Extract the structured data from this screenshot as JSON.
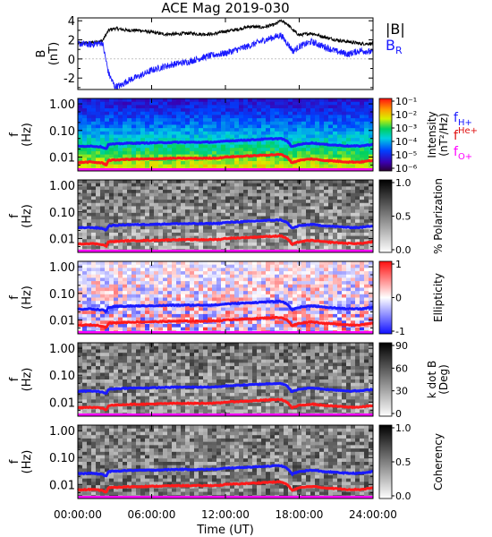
{
  "figure_title": "ACE Mag 2019-030",
  "x_axis": {
    "label": "Time (UT)",
    "ticks": [
      "00:00:00",
      "06:00:00",
      "12:00:00",
      "18:00:00",
      "24:00:00"
    ],
    "range_hours": [
      0,
      24
    ]
  },
  "colors": {
    "B_total": "#000000",
    "B_R": "#1a1aff",
    "f_H": "#1a1aff",
    "f_He": "#ff1a1a",
    "f_O": "#ff00ff"
  },
  "chart_data": [
    {
      "type": "line",
      "panel": "field",
      "ylabel": "B\n(nT)",
      "ylim": [
        -3.2,
        4.3
      ],
      "yticks": [
        "4",
        "2",
        "0",
        "-2"
      ],
      "legend": {
        "placement": "right",
        "entries": [
          "|B|",
          "B_R"
        ]
      },
      "x_hours": [
        0,
        1,
        2,
        2.5,
        3,
        3.5,
        4,
        5,
        6,
        7,
        8,
        9,
        10,
        11,
        12,
        13,
        14,
        15,
        16,
        16.5,
        17,
        17.5,
        18,
        19,
        20,
        21,
        22,
        23,
        24
      ],
      "series": [
        {
          "name": "|B|",
          "values": [
            1.6,
            1.7,
            1.9,
            3.0,
            3.2,
            3.1,
            3.0,
            3.0,
            2.8,
            2.6,
            2.6,
            2.7,
            2.6,
            2.6,
            2.9,
            3.1,
            3.4,
            3.3,
            3.6,
            4.0,
            3.7,
            3.0,
            2.5,
            2.7,
            2.3,
            2.0,
            1.8,
            1.6,
            1.6
          ]
        },
        {
          "name": "B_R",
          "values": [
            1.6,
            1.5,
            1.7,
            -1.5,
            -2.9,
            -2.8,
            -2.3,
            -1.8,
            -1.2,
            -0.8,
            -0.5,
            -0.3,
            0.1,
            0.4,
            0.6,
            1.0,
            1.4,
            1.9,
            2.3,
            2.5,
            1.7,
            0.8,
            1.3,
            1.8,
            1.3,
            0.8,
            0.5,
            0.9,
            0.7
          ]
        }
      ]
    },
    {
      "type": "heatmap",
      "panel": "intensity",
      "ylabel": "f\n(Hz)",
      "scale": "log",
      "yticks": [
        "1.00",
        "0.10",
        "0.01"
      ],
      "colorbar": {
        "label": "Intensity\n(nT²/Hz)",
        "ticks": [
          "10⁻¹",
          "10⁻²",
          "10⁻³",
          "10⁻⁴",
          "10⁻⁵",
          "10⁻⁶"
        ]
      },
      "legend_labels": [
        "f_H+",
        "f_He+",
        "f_O+"
      ]
    },
    {
      "type": "heatmap",
      "panel": "polarization",
      "ylabel": "f\n(Hz)",
      "scale": "log",
      "yticks": [
        "1.00",
        "0.10",
        "0.01"
      ],
      "colorbar": {
        "label": "% Polarization",
        "ticks": [
          "1.0",
          "0.5",
          "0.0"
        ]
      }
    },
    {
      "type": "heatmap",
      "panel": "ellipticity",
      "ylabel": "f\n(Hz)",
      "scale": "log",
      "yticks": [
        "1.00",
        "0.10",
        "0.01"
      ],
      "colorbar": {
        "label": "Ellipticity",
        "ticks": [
          "1",
          "0",
          "-1"
        ]
      }
    },
    {
      "type": "heatmap",
      "panel": "kdotb",
      "ylabel": "f\n(Hz)",
      "scale": "log",
      "yticks": [
        "1.00",
        "0.10",
        "0.01"
      ],
      "colorbar": {
        "label": "k dot B\n(Deg)",
        "ticks": [
          "90",
          "60",
          "30",
          "0"
        ]
      }
    },
    {
      "type": "heatmap",
      "panel": "coherency",
      "ylabel": "f\n(Hz)",
      "scale": "log",
      "yticks": [
        "1.00",
        "0.10",
        "0.01"
      ],
      "colorbar": {
        "label": "Coherency",
        "ticks": [
          "1.0",
          "0.5",
          "0.0"
        ]
      }
    }
  ],
  "gyro_lines": {
    "x_hours": [
      0,
      1,
      2,
      2.3,
      2.5,
      4,
      6,
      8,
      10,
      11.5,
      12,
      14,
      15.5,
      16.5,
      17,
      17.4,
      18,
      19,
      20,
      21,
      22,
      23,
      24
    ],
    "f_H_hz": [
      0.025,
      0.026,
      0.024,
      0.02,
      0.03,
      0.033,
      0.034,
      0.036,
      0.036,
      0.037,
      0.04,
      0.044,
      0.048,
      0.05,
      0.04,
      0.024,
      0.03,
      0.034,
      0.03,
      0.028,
      0.026,
      0.026,
      0.03
    ],
    "f_He_hz": [
      0.0062,
      0.0065,
      0.006,
      0.005,
      0.0075,
      0.0082,
      0.0085,
      0.009,
      0.009,
      0.0092,
      0.01,
      0.011,
      0.012,
      0.0125,
      0.01,
      0.006,
      0.0075,
      0.0085,
      0.0075,
      0.007,
      0.0065,
      0.0065,
      0.0075
    ],
    "f_O_hz": [
      0.0016,
      0.0016,
      0.0015,
      0.0013,
      0.0019,
      0.0021,
      0.0021,
      0.0022,
      0.0022,
      0.0023,
      0.0025,
      0.0028,
      0.003,
      0.0031,
      0.0025,
      0.0015,
      0.0019,
      0.0021,
      0.0019,
      0.0018,
      0.0016,
      0.0016,
      0.0019
    ]
  }
}
